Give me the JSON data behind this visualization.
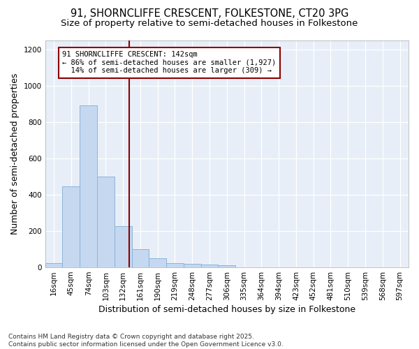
{
  "title_line1": "91, SHORNCLIFFE CRESCENT, FOLKESTONE, CT20 3PG",
  "title_line2": "Size of property relative to semi-detached houses in Folkestone",
  "xlabel": "Distribution of semi-detached houses by size in Folkestone",
  "ylabel": "Number of semi-detached properties",
  "footer_line1": "Contains HM Land Registry data © Crown copyright and database right 2025.",
  "footer_line2": "Contains public sector information licensed under the Open Government Licence v3.0.",
  "categories": [
    "16sqm",
    "45sqm",
    "74sqm",
    "103sqm",
    "132sqm",
    "161sqm",
    "190sqm",
    "219sqm",
    "248sqm",
    "277sqm",
    "306sqm",
    "335sqm",
    "364sqm",
    "394sqm",
    "423sqm",
    "452sqm",
    "481sqm",
    "510sqm",
    "539sqm",
    "568sqm",
    "597sqm"
  ],
  "values": [
    25,
    445,
    890,
    500,
    225,
    100,
    50,
    25,
    20,
    15,
    10,
    0,
    0,
    0,
    0,
    0,
    0,
    0,
    0,
    0,
    0
  ],
  "bar_color": "#c5d8f0",
  "bar_edge_color": "#8ab4d8",
  "vline_color": "#8b0000",
  "annotation_line1": "91 SHORNCLIFFE CRESCENT: 142sqm",
  "annotation_line2": "← 86% of semi-detached houses are smaller (1,927)",
  "annotation_line3": "  14% of semi-detached houses are larger (309) →",
  "annotation_box_color": "#ffffff",
  "annotation_box_edge": "#8b0000",
  "ylim": [
    0,
    1250
  ],
  "yticks": [
    0,
    200,
    400,
    600,
    800,
    1000,
    1200
  ],
  "background_color": "#ffffff",
  "plot_background": "#e8eef8",
  "grid_color": "#ffffff",
  "title_fontsize": 10.5,
  "subtitle_fontsize": 9.5,
  "axis_label_fontsize": 9,
  "tick_fontsize": 7.5,
  "footer_fontsize": 6.5
}
